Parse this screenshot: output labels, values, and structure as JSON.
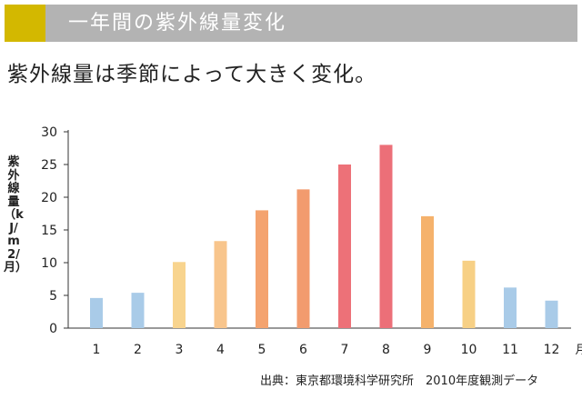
{
  "header": {
    "title": "一年間の紫外線量変化"
  },
  "subtitle": "紫外線量は季節によって大きく変化。",
  "source_note": "出典：東京都環境科学研究所　2010年度観測データ",
  "colors": {
    "header_bg": "#b3b3b3",
    "header_accent": "#d3b800",
    "axis": "#333333"
  },
  "chart_data": {
    "type": "bar",
    "title": "",
    "xlabel": "月",
    "ylabel": "紫外線量（kJ/m2/月）",
    "ylim": [
      0,
      30
    ],
    "yticks": [
      "0",
      "5",
      "10",
      "15",
      "20",
      "25",
      "30"
    ],
    "categories": [
      "1",
      "2",
      "3",
      "4",
      "5",
      "6",
      "7",
      "8",
      "9",
      "10",
      "11",
      "12"
    ],
    "values": [
      4.6,
      5.4,
      10.1,
      13.3,
      18.0,
      21.2,
      25.0,
      28.0,
      17.1,
      10.3,
      6.2,
      4.2
    ],
    "bar_colors": [
      "#a9cbe8",
      "#a9cbe8",
      "#f8d48e",
      "#f8c58c",
      "#f4a36f",
      "#f29b6e",
      "#ed7178",
      "#ec6f78",
      "#f5b26c",
      "#f7d085",
      "#a9cbe8",
      "#a9cbe8"
    ],
    "grid": false
  }
}
